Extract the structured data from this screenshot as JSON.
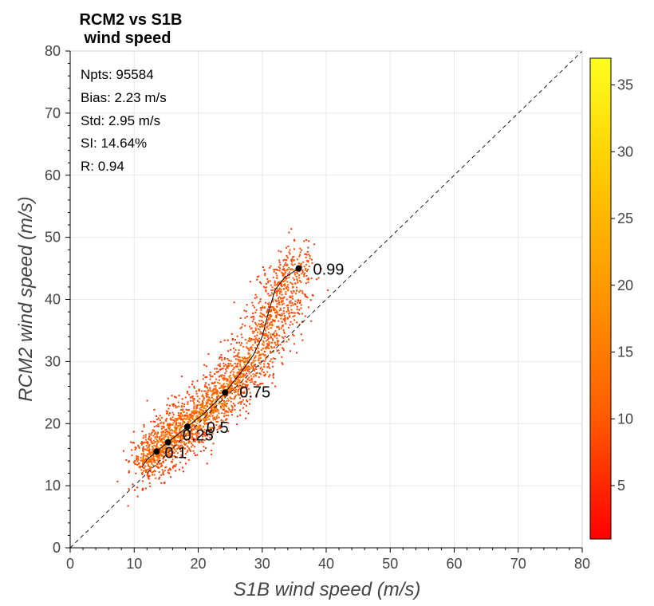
{
  "chart_data": {
    "type": "scatter",
    "title_lines": [
      "RCM2 vs S1B",
      "wind speed"
    ],
    "xlabel": "S1B wind speed (m/s)",
    "ylabel": "RCM2 wind speed (m/s)",
    "xlim": [
      0,
      80
    ],
    "ylim": [
      0,
      80
    ],
    "xticks": [
      0,
      10,
      20,
      30,
      40,
      50,
      60,
      70,
      80
    ],
    "yticks": [
      0,
      10,
      20,
      30,
      40,
      50,
      60,
      70,
      80
    ],
    "grid": true,
    "one_to_one_line": true,
    "stats": [
      "Npts: 95584",
      "Bias: 2.23 m/s",
      "Std: 2.95 m/s",
      "SI: 14.64%",
      "R: 0.94"
    ],
    "quantiles": [
      {
        "label": "0.1",
        "x": 13.5,
        "y": 15.5
      },
      {
        "label": "0.25",
        "x": 15.3,
        "y": 17.0
      },
      {
        "label": "0.5",
        "x": 18.3,
        "y": 19.5
      },
      {
        "label": "0.75",
        "x": 24.2,
        "y": 25.0
      },
      {
        "label": "0.99",
        "x": 35.7,
        "y": 45.0
      }
    ],
    "quantile_curve": [
      [
        11.2,
        13.0
      ],
      [
        12.0,
        14.2
      ],
      [
        13.5,
        15.5
      ],
      [
        15.3,
        17.0
      ],
      [
        18.3,
        19.5
      ],
      [
        21.0,
        21.7
      ],
      [
        24.2,
        25.0
      ],
      [
        26.5,
        28.0
      ],
      [
        28.6,
        31.0
      ],
      [
        30.0,
        34.0
      ],
      [
        31.0,
        38.0
      ],
      [
        32.0,
        41.5
      ],
      [
        33.5,
        43.5
      ],
      [
        35.7,
        45.0
      ]
    ],
    "density_ridge": [
      [
        11.5,
        14.0,
        2
      ],
      [
        13.0,
        15.5,
        3
      ],
      [
        14.5,
        16.8,
        3
      ],
      [
        16.0,
        18.0,
        3
      ],
      [
        18.0,
        19.7,
        3
      ],
      [
        20.0,
        21.2,
        3
      ],
      [
        22.0,
        23.0,
        3
      ],
      [
        24.0,
        25.0,
        3
      ],
      [
        26.0,
        27.3,
        3
      ],
      [
        28.0,
        30.0,
        3.5
      ],
      [
        30.0,
        33.0,
        3.5
      ],
      [
        31.5,
        37.0,
        4
      ],
      [
        33.0,
        42.5,
        3.5
      ],
      [
        35.5,
        44.5,
        3.5
      ]
    ],
    "colorbar": {
      "min": 1,
      "max": 37,
      "ticks": [
        5,
        10,
        15,
        20,
        25,
        30,
        35
      ],
      "colors": [
        "#ff0000",
        "#ff5a00",
        "#ff9400",
        "#ffc800",
        "#ffff1e"
      ]
    }
  }
}
